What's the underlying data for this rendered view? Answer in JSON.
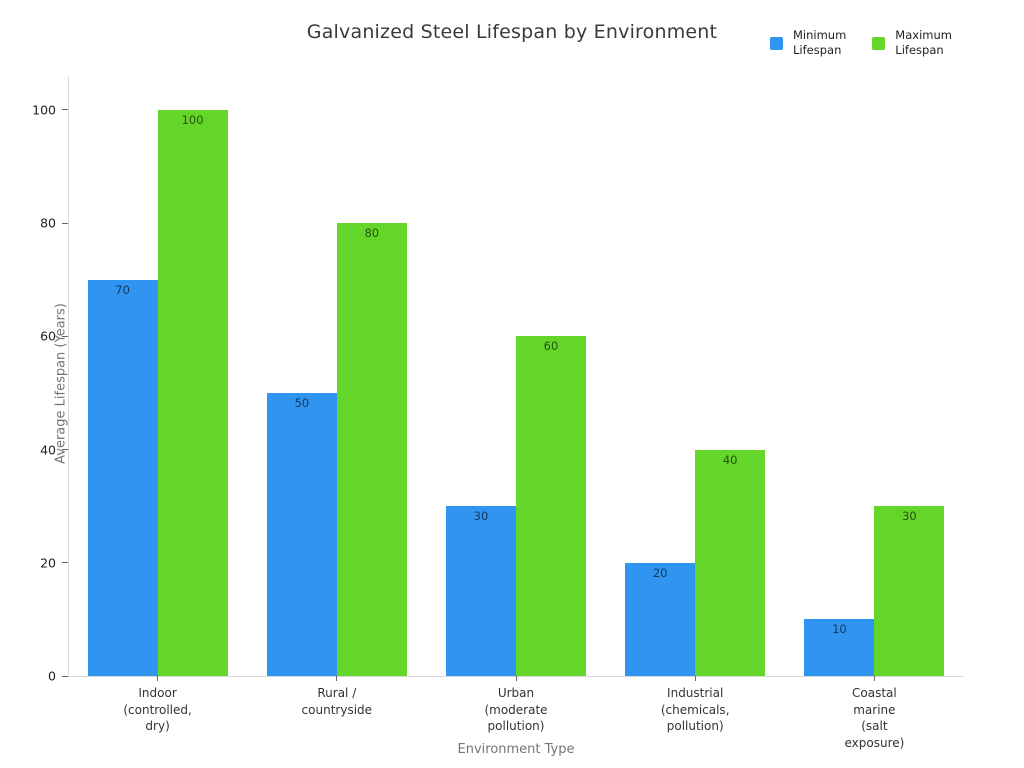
{
  "chart_data": {
    "type": "bar",
    "title": "Galvanized Steel Lifespan by Environment",
    "xlabel": "Environment Type",
    "ylabel": "Average Lifespan (Years)",
    "categories": [
      "Indoor\n(controlled,\ndry)",
      "Rural /\ncountryside",
      "Urban\n(moderate\npollution)",
      "Industrial\n(chemicals,\npollution)",
      "Coastal\nmarine\n(salt exposure)"
    ],
    "series": [
      {
        "name": "Minimum\nLifespan",
        "color": "#3095f1",
        "values": [
          70,
          50,
          30,
          20,
          10
        ]
      },
      {
        "name": "Maximum\nLifespan",
        "color": "#64d62a",
        "values": [
          100,
          80,
          60,
          40,
          30
        ]
      }
    ],
    "yticks": [
      0,
      20,
      40,
      60,
      80,
      100
    ],
    "ylim": [
      0,
      106
    ],
    "grid": false,
    "legend_position": "top-right",
    "bar_value_labels": "inside-top",
    "axis_line_color": "#d9d9d9",
    "tick_color": "#666666"
  }
}
